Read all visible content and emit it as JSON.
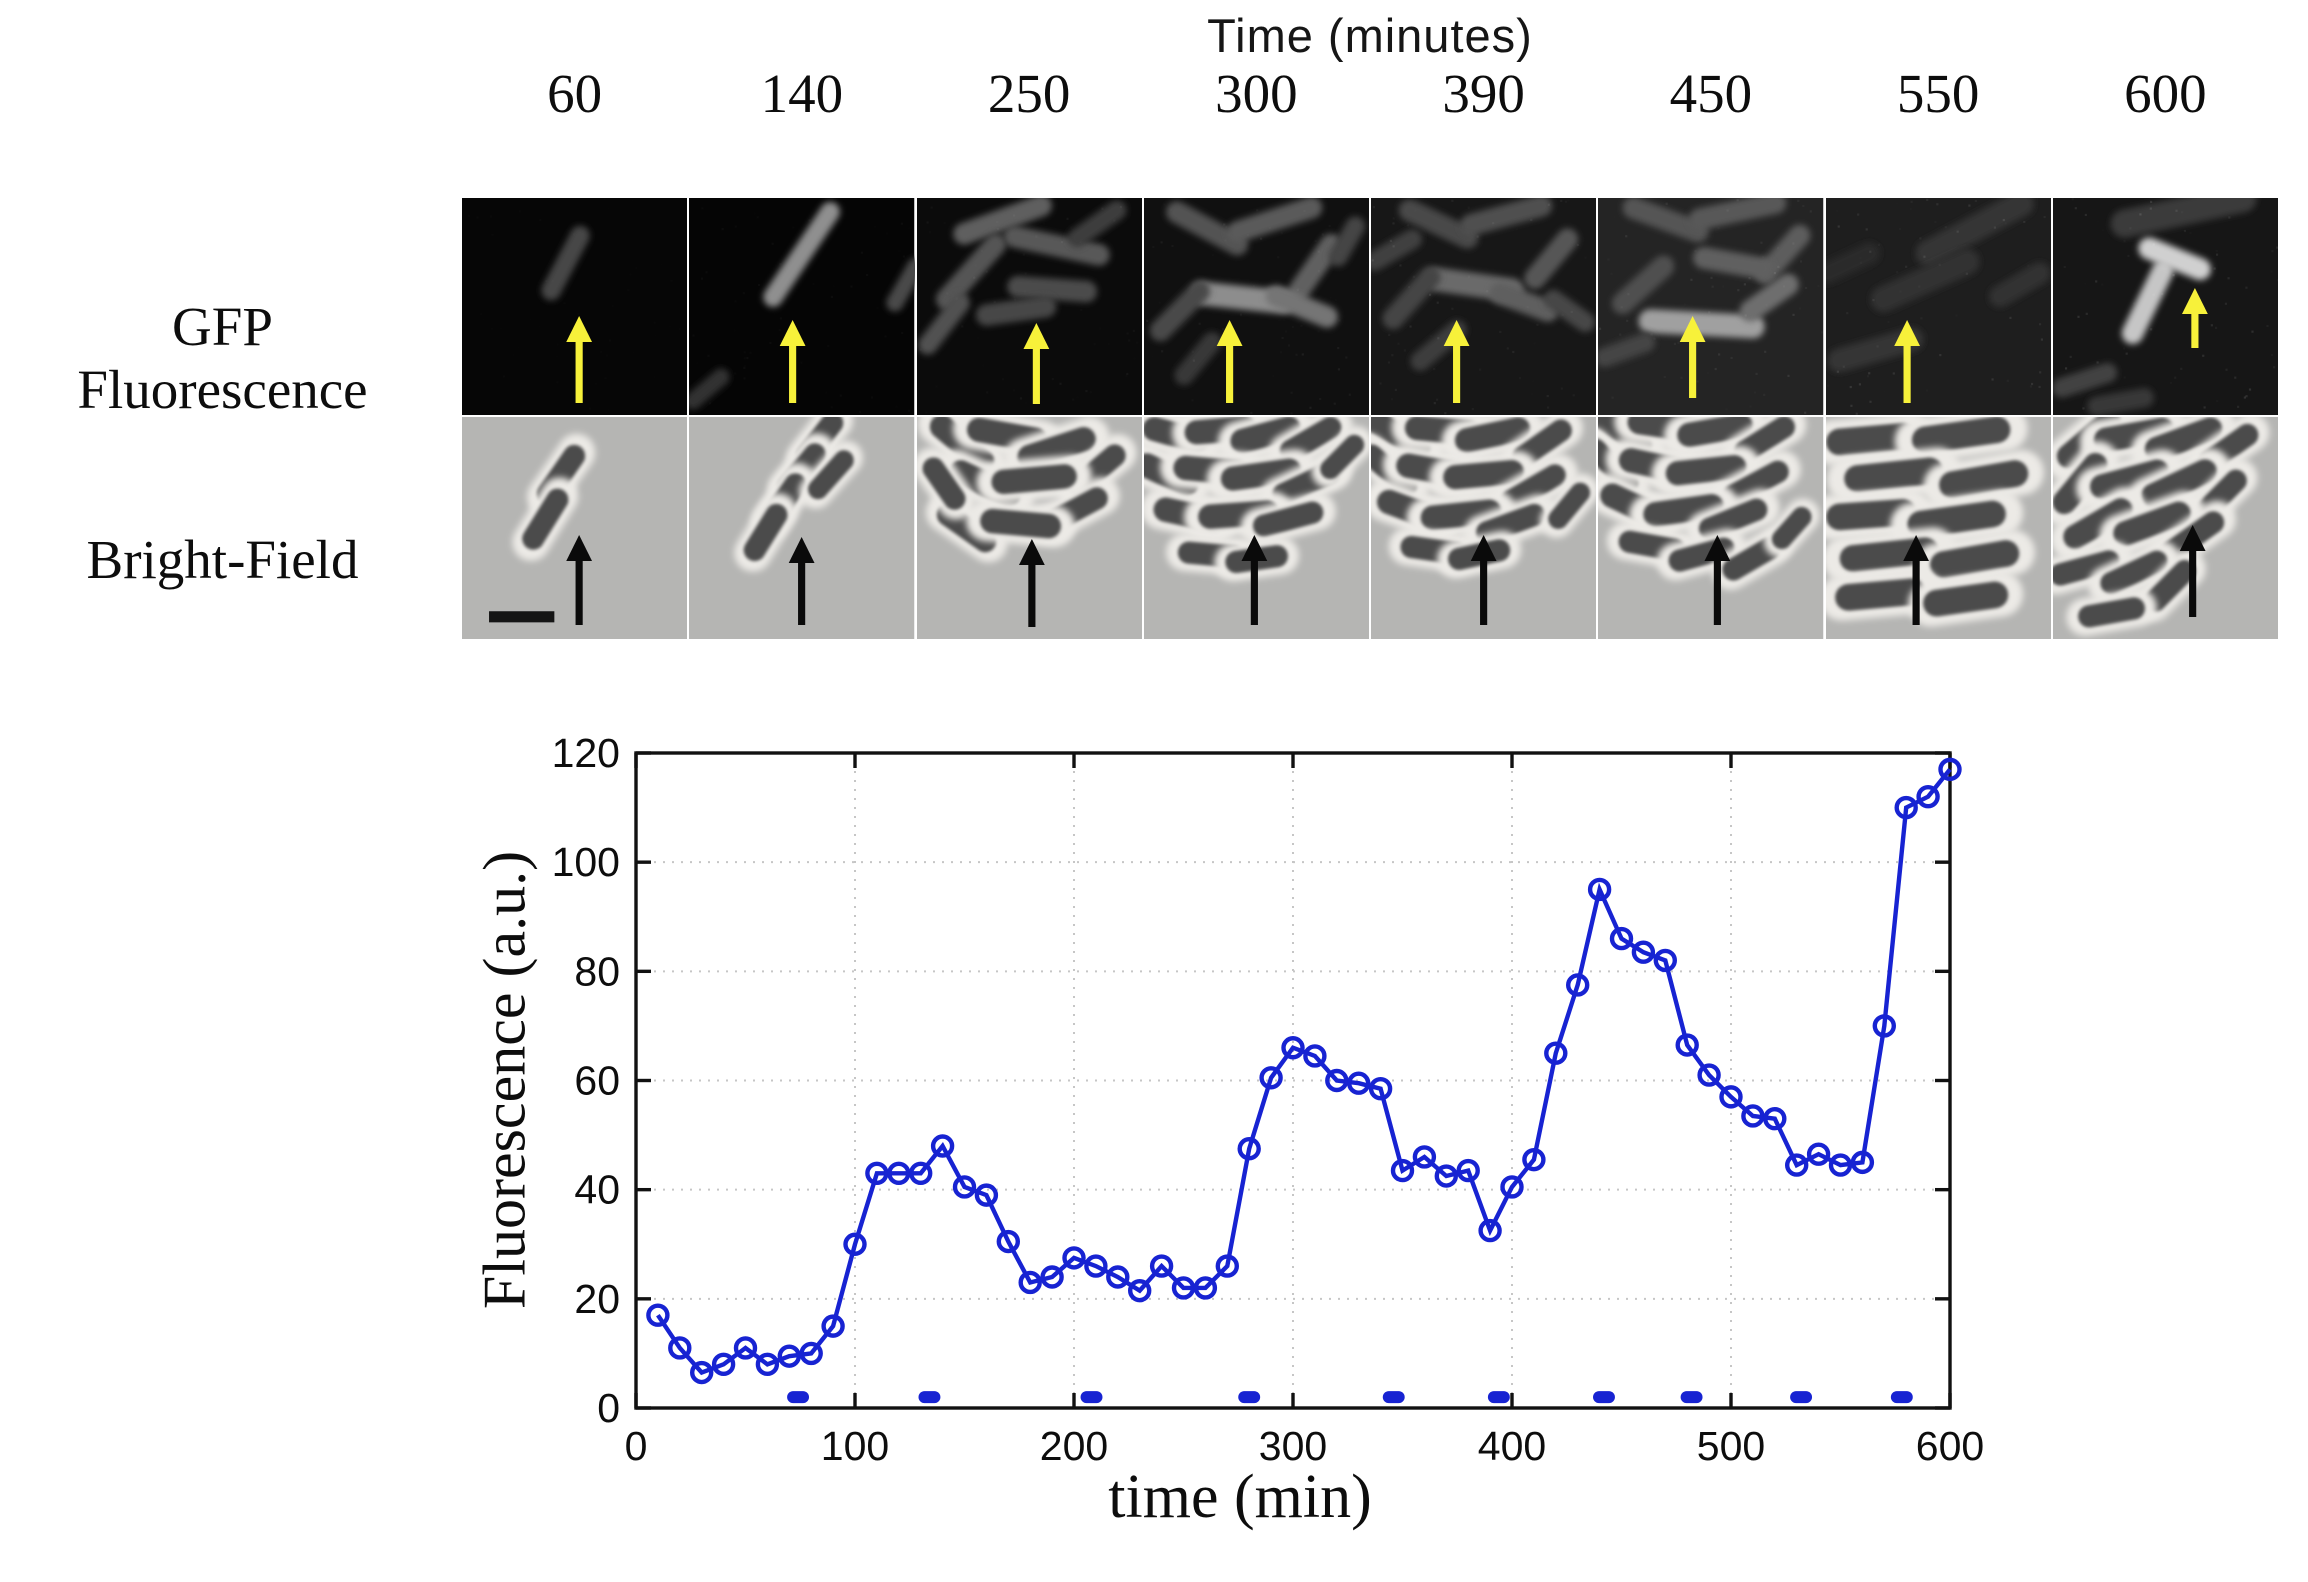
{
  "figure": {
    "strip_title": "Time (minutes)",
    "row_labels": {
      "gfp_line1": "GFP",
      "gfp_line2": "Fluorescence",
      "brightfield": "Bright-Field"
    },
    "panel_times": [
      "60",
      "140",
      "250",
      "300",
      "390",
      "450",
      "550",
      "600"
    ],
    "arrow_colors": {
      "gfp": "#f7f13a",
      "brightfield": "#0a0a0a"
    },
    "brightfield_background": "#b5b5b3",
    "scale_bar": {
      "panel_index": 0,
      "color": "#151515"
    }
  },
  "chart_data": {
    "type": "line",
    "title": "",
    "xlabel": "time (min)",
    "ylabel": "Fluorescence (a.u.)",
    "xlim": [
      0,
      600
    ],
    "ylim": [
      0,
      120
    ],
    "xticks": [
      0,
      100,
      200,
      300,
      400,
      500,
      600
    ],
    "yticks": [
      0,
      20,
      40,
      60,
      80,
      100,
      120
    ],
    "grid": "dotted",
    "legend_position": "none",
    "series": [
      {
        "name": "GFP fluorescence",
        "marker": "open-circle",
        "color": "#1723d2",
        "x": [
          10,
          20,
          30,
          40,
          50,
          60,
          70,
          80,
          90,
          100,
          110,
          120,
          130,
          140,
          150,
          160,
          170,
          180,
          190,
          200,
          210,
          220,
          230,
          240,
          250,
          260,
          270,
          280,
          290,
          300,
          310,
          320,
          330,
          340,
          350,
          360,
          370,
          380,
          390,
          400,
          410,
          420,
          430,
          440,
          450,
          460,
          470,
          480,
          490,
          500,
          510,
          520,
          530,
          540,
          550,
          560,
          570,
          580,
          590,
          600
        ],
        "y": [
          17,
          11,
          6.5,
          8,
          11,
          8,
          9.5,
          10,
          15,
          30,
          43,
          43,
          43,
          48,
          40.5,
          39,
          30.5,
          23,
          24,
          27.5,
          26,
          24,
          21.5,
          26,
          22,
          22,
          26,
          47.5,
          60.5,
          66,
          64.5,
          60,
          59.5,
          58.5,
          43.5,
          46,
          42.5,
          43.5,
          32.5,
          40.5,
          45.5,
          65,
          77.5,
          95,
          86,
          83.5,
          82,
          66.5,
          61,
          57,
          53.5,
          53,
          44.5,
          46.5,
          44.5,
          45,
          70,
          110,
          112,
          117
        ]
      }
    ],
    "pulse_marks": {
      "description": "short horizontal bars near y=2 marking inducer pulses",
      "color": "#1723d2",
      "y_value": 2,
      "intervals": [
        [
          69,
          79
        ],
        [
          129,
          139
        ],
        [
          203,
          213
        ],
        [
          275,
          285
        ],
        [
          341,
          351
        ],
        [
          389,
          399
        ],
        [
          437,
          447
        ],
        [
          477,
          487
        ],
        [
          527,
          537
        ],
        [
          573,
          583
        ]
      ]
    }
  }
}
